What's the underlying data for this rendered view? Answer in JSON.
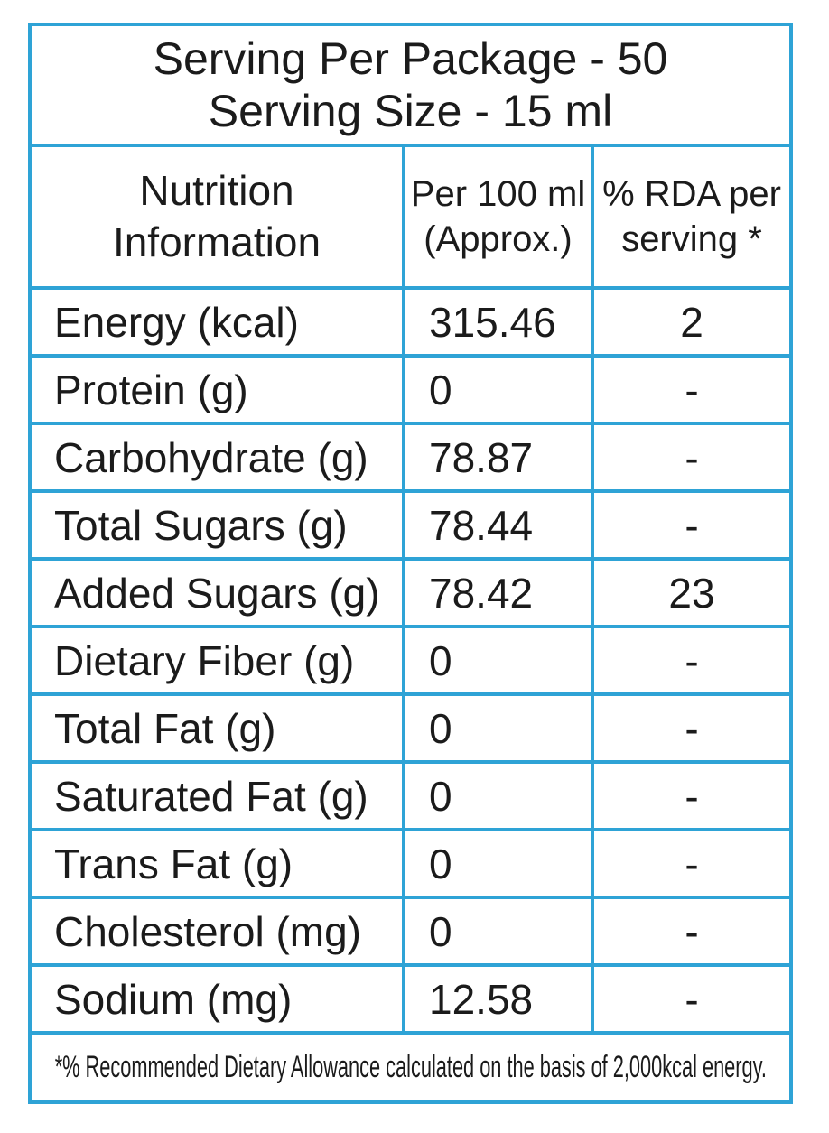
{
  "table": {
    "border_color": "#2ea3d6",
    "text_color": "#1b1b1b",
    "serving_header": {
      "line1": "Serving Per Package - 50",
      "line2": "Serving Size - 15 ml"
    },
    "columns": {
      "nutrient": {
        "line1": "Nutrition",
        "line2": "Information"
      },
      "per_100ml": {
        "line1": "Per 100 ml",
        "line2": "(Approx.)"
      },
      "rda": {
        "line1": "% RDA per",
        "line2": "serving *"
      }
    },
    "rows": [
      {
        "nutrient": "Energy (kcal)",
        "per_100ml": "315.46",
        "rda": "2"
      },
      {
        "nutrient": "Protein (g)",
        "per_100ml": "0",
        "rda": "-"
      },
      {
        "nutrient": "Carbohydrate (g)",
        "per_100ml": "78.87",
        "rda": "-"
      },
      {
        "nutrient": "Total Sugars (g)",
        "per_100ml": "78.44",
        "rda": "-"
      },
      {
        "nutrient": "Added Sugars (g)",
        "per_100ml": "78.42",
        "rda": "23"
      },
      {
        "nutrient": "Dietary Fiber (g)",
        "per_100ml": "0",
        "rda": "-"
      },
      {
        "nutrient": "Total Fat (g)",
        "per_100ml": "0",
        "rda": "-"
      },
      {
        "nutrient": "Saturated Fat (g)",
        "per_100ml": "0",
        "rda": "-"
      },
      {
        "nutrient": "Trans Fat (g)",
        "per_100ml": "0",
        "rda": "-"
      },
      {
        "nutrient": "Cholesterol (mg)",
        "per_100ml": "0",
        "rda": "-"
      },
      {
        "nutrient": "Sodium (mg)",
        "per_100ml": "12.58",
        "rda": "-"
      }
    ],
    "footnote": "*% Recommended Dietary Allowance calculated on the basis of 2,000kcal energy."
  }
}
